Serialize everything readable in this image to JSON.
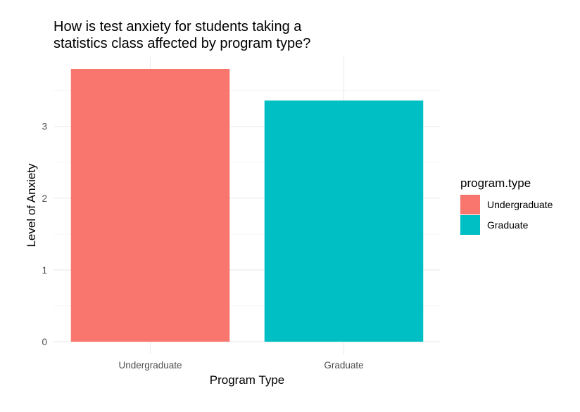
{
  "chart_data": {
    "type": "bar",
    "title_lines": [
      "How is test anxiety for students taking a",
      "statistics class affected by program type?"
    ],
    "xlabel": "Program Type",
    "ylabel": "Level of Anxiety",
    "categories": [
      "Undergraduate",
      "Graduate"
    ],
    "values": [
      3.8,
      3.36
    ],
    "colors": [
      "#F8766D",
      "#00BFC4"
    ],
    "ylim": [
      0,
      3.8
    ],
    "yticks": [
      0,
      1,
      2,
      3
    ],
    "grid": true,
    "legend": {
      "title": "program.type",
      "position": "right",
      "items": [
        {
          "label": "Undergraduate",
          "color": "#F8766D"
        },
        {
          "label": "Graduate",
          "color": "#00BFC4"
        }
      ]
    }
  }
}
